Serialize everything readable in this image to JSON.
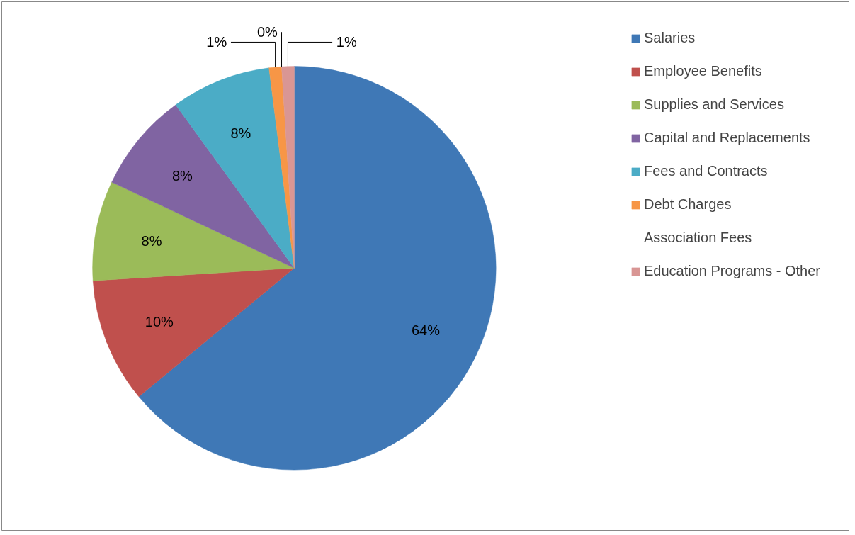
{
  "chart_data": {
    "type": "pie",
    "categories": [
      "Salaries",
      "Employee Benefits",
      "Supplies and Services",
      "Capital and Replacements",
      "Fees and Contracts",
      "Debt Charges",
      "Association Fees",
      "Education Programs - Other"
    ],
    "values": [
      64,
      10,
      8,
      8,
      8,
      1,
      0,
      1
    ],
    "colors": [
      "#3f78b6",
      "#c0504d",
      "#9bbb59",
      "#8064a2",
      "#4bacc6",
      "#f79646",
      "#95b3d7",
      "#d99694"
    ],
    "value_labels": [
      "64%",
      "10%",
      "8%",
      "8%",
      "8%",
      "1%",
      "0%",
      "1%"
    ],
    "legend": "right"
  }
}
